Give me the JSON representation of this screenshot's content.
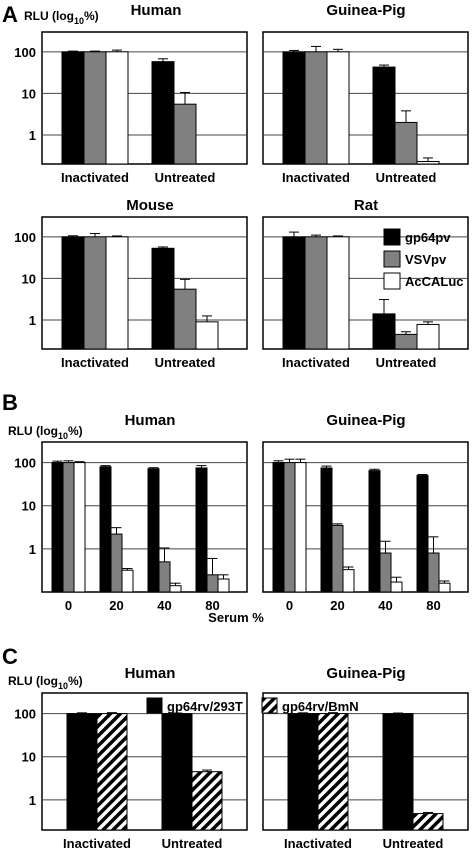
{
  "colors": {
    "black": "#000000",
    "gray": "#808080",
    "white": "#ffffff"
  },
  "panels": {
    "A": {
      "letter": "A",
      "ylabel_main": "RLU (log",
      "ylabel_sub": "10",
      "ylabel_end": "%)"
    },
    "B": {
      "letter": "B",
      "ylabel_main": "RLU (log",
      "ylabel_sub": "10",
      "ylabel_end": "%)",
      "xlabel": "Serum %"
    },
    "C": {
      "letter": "C",
      "ylabel_main": "RLU (log",
      "ylabel_sub": "10",
      "ylabel_end": "%)"
    }
  },
  "chart_data": [
    {
      "id": "A-human",
      "type": "bar",
      "title": "Human",
      "yscale": "log",
      "ylim": [
        0.2,
        300
      ],
      "yticks": [
        "100",
        "10",
        "1"
      ],
      "grid": true,
      "categories": [
        "Inactivated",
        "Untreated"
      ],
      "series": [
        {
          "name": "gp64pv",
          "color": "black",
          "values": [
            100,
            58
          ],
          "errors": [
            4,
            10
          ]
        },
        {
          "name": "VSVpv",
          "color": "gray",
          "values": [
            100,
            5.5
          ],
          "errors": [
            4,
            5
          ]
        },
        {
          "name": "AcCALuc",
          "color": "white",
          "values": [
            100,
            null
          ],
          "errors": [
            10,
            null
          ]
        }
      ]
    },
    {
      "id": "A-guinea-pig",
      "type": "bar",
      "title": "Guinea-Pig",
      "yscale": "log",
      "ylim": [
        0.2,
        300
      ],
      "yticks": [],
      "grid": true,
      "categories": [
        "Inactivated",
        "Untreated"
      ],
      "series": [
        {
          "name": "gp64pv",
          "color": "black",
          "values": [
            100,
            43
          ],
          "errors": [
            8,
            5
          ]
        },
        {
          "name": "VSVpv",
          "color": "gray",
          "values": [
            100,
            2.0
          ],
          "errors": [
            35,
            1.8
          ]
        },
        {
          "name": "AcCALuc",
          "color": "white",
          "values": [
            100,
            0.23
          ],
          "errors": [
            15,
            0.05
          ]
        }
      ]
    },
    {
      "id": "A-mouse",
      "type": "bar",
      "title": "Mouse",
      "yscale": "log",
      "ylim": [
        0.2,
        300
      ],
      "yticks": [
        "100",
        "10",
        "1"
      ],
      "grid": true,
      "categories": [
        "Inactivated",
        "Untreated"
      ],
      "series": [
        {
          "name": "gp64pv",
          "color": "black",
          "values": [
            100,
            53
          ],
          "errors": [
            6,
            4
          ]
        },
        {
          "name": "VSVpv",
          "color": "gray",
          "values": [
            100,
            5.5
          ],
          "errors": [
            20,
            4
          ]
        },
        {
          "name": "AcCALuc",
          "color": "white",
          "values": [
            100,
            0.9
          ],
          "errors": [
            5,
            0.35
          ]
        }
      ]
    },
    {
      "id": "A-rat",
      "type": "bar",
      "title": "Rat",
      "yscale": "log",
      "ylim": [
        0.2,
        300
      ],
      "yticks": [],
      "grid": true,
      "categories": [
        "Inactivated",
        "Untreated"
      ],
      "legend": "top-right",
      "series": [
        {
          "name": "gp64pv",
          "color": "black",
          "values": [
            100,
            1.4
          ],
          "errors": [
            30,
            1.7
          ]
        },
        {
          "name": "VSVpv",
          "color": "gray",
          "values": [
            100,
            0.45
          ],
          "errors": [
            10,
            0.07
          ]
        },
        {
          "name": "AcCALuc",
          "color": "white",
          "values": [
            100,
            0.78
          ],
          "errors": [
            5,
            0.12
          ]
        }
      ]
    },
    {
      "id": "B-human",
      "type": "bar",
      "title": "Human",
      "yscale": "log",
      "ylim": [
        0.1,
        300
      ],
      "yticks": [
        "100",
        "10",
        "1"
      ],
      "grid": true,
      "categories": [
        "0",
        "20",
        "40",
        "80"
      ],
      "series": [
        {
          "name": "gp64pv",
          "color": "black",
          "values": [
            100,
            80,
            72,
            75
          ],
          "errors": [
            8,
            5,
            4,
            10
          ]
        },
        {
          "name": "VSVpv",
          "color": "gray",
          "values": [
            100,
            2.2,
            0.5,
            0.25
          ],
          "errors": [
            10,
            0.9,
            0.55,
            0.35
          ]
        },
        {
          "name": "AcCALuc",
          "color": "white",
          "values": [
            100,
            0.32,
            0.14,
            0.2
          ],
          "errors": [
            5,
            0.03,
            0.02,
            0.05
          ]
        }
      ]
    },
    {
      "id": "B-guinea-pig",
      "type": "bar",
      "title": "Guinea-Pig",
      "yscale": "log",
      "ylim": [
        0.1,
        300
      ],
      "yticks": [],
      "grid": true,
      "categories": [
        "0",
        "20",
        "40",
        "80"
      ],
      "series": [
        {
          "name": "gp64pv",
          "color": "black",
          "values": [
            100,
            75,
            65,
            50
          ],
          "errors": [
            10,
            8,
            5,
            3
          ]
        },
        {
          "name": "VSVpv",
          "color": "gray",
          "values": [
            100,
            3.5,
            0.8,
            0.8
          ],
          "errors": [
            20,
            0.3,
            0.7,
            1.1
          ]
        },
        {
          "name": "AcCALuc",
          "color": "white",
          "values": [
            100,
            0.33,
            0.17,
            0.16
          ],
          "errors": [
            20,
            0.05,
            0.05,
            0.02
          ]
        }
      ]
    },
    {
      "id": "C-human",
      "type": "bar",
      "title": "Human",
      "yscale": "log",
      "ylim": [
        0.2,
        300
      ],
      "yticks": [
        "100",
        "10",
        "1"
      ],
      "grid": true,
      "categories": [
        "Inactivated",
        "Untreated"
      ],
      "series": [
        {
          "name": "gp64rv/293T",
          "color": "black",
          "values": [
            100,
            100
          ],
          "errors": [
            4,
            3
          ]
        },
        {
          "name": "gp64rv/BmN",
          "color": "hatched",
          "values": [
            100,
            4.5
          ],
          "errors": [
            5,
            0.4
          ]
        }
      ]
    },
    {
      "id": "C-guinea-pig",
      "type": "bar",
      "title": "Guinea-Pig",
      "yscale": "log",
      "ylim": [
        0.2,
        300
      ],
      "yticks": [],
      "grid": true,
      "categories": [
        "Inactivated",
        "Untreated"
      ],
      "series": [
        {
          "name": "gp64rv/293T",
          "color": "black",
          "values": [
            100,
            100
          ],
          "errors": [
            4,
            3
          ]
        },
        {
          "name": "gp64rv/BmN",
          "color": "hatched",
          "values": [
            100,
            0.48
          ],
          "errors": [
            5,
            0.03
          ]
        }
      ]
    }
  ],
  "legends": {
    "A": [
      {
        "label": "gp64pv",
        "color": "black"
      },
      {
        "label": "VSVpv",
        "color": "gray"
      },
      {
        "label": "AcCALuc",
        "color": "white"
      }
    ],
    "C": [
      {
        "label": "gp64rv/293T",
        "color": "black"
      },
      {
        "label": "gp64rv/BmN",
        "color": "hatched"
      }
    ]
  }
}
